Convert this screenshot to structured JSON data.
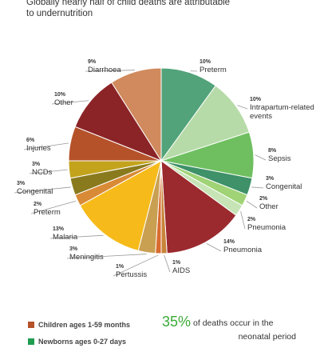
{
  "subtitle": "Globally nearly half of child deaths are attributable to undernutrition",
  "colors": {
    "children": "#b5522a",
    "newborns": "#1e9c4f"
  },
  "chart_data": {
    "type": "pie",
    "slices": [
      {
        "pct": "10%",
        "label": [
          "Preterm"
        ],
        "value": 10,
        "color": "#52a37a"
      },
      {
        "pct": "10%",
        "label": [
          "Intrapartum-related",
          "events"
        ],
        "value": 10,
        "color": "#b6dba8"
      },
      {
        "pct": "8%",
        "label": [
          "Sepsis"
        ],
        "value": 8,
        "color": "#6fbf60"
      },
      {
        "pct": "3%",
        "label": [
          "Congenital"
        ],
        "value": 3,
        "color": "#3e9168"
      },
      {
        "pct": "2%",
        "label": [
          "Other"
        ],
        "value": 2,
        "color": "#9fd375"
      },
      {
        "pct": "2%",
        "label": [
          "Pneumonia"
        ],
        "value": 2,
        "color": "#c6e4b5"
      },
      {
        "pct": "14%",
        "label": [
          "Pneumonia"
        ],
        "value": 14,
        "color": "#9b2a2f"
      },
      {
        "pct": "1%",
        "label": [
          "AIDS"
        ],
        "value": 1,
        "color": "#c8843a"
      },
      {
        "pct": "1%",
        "label": [
          "Pertussis"
        ],
        "value": 1,
        "color": "#d96b2f"
      },
      {
        "pct": "3%",
        "label": [
          "Meningitis"
        ],
        "value": 3,
        "color": "#c9a052"
      },
      {
        "pct": "13%",
        "label": [
          "Malaria"
        ],
        "value": 13,
        "color": "#f6bb1b"
      },
      {
        "pct": "2%",
        "label": [
          "Preterm"
        ],
        "value": 2,
        "color": "#d98a36"
      },
      {
        "pct": "3%",
        "label": [
          "Congenital"
        ],
        "value": 3,
        "color": "#8a7a1e"
      },
      {
        "pct": "3%",
        "label": [
          "NCDs"
        ],
        "value": 3,
        "color": "#c2a31b"
      },
      {
        "pct": "6%",
        "label": [
          "Injuries"
        ],
        "value": 6,
        "color": "#b5522a"
      },
      {
        "pct": "10%",
        "label": [
          "Other"
        ],
        "value": 10,
        "color": "#8b2427"
      },
      {
        "pct": "9%",
        "label": [
          "Diarrhoea"
        ],
        "value": 9,
        "color": "#d08a5d"
      }
    ]
  },
  "legend": [
    {
      "label": "Children ages 1-59 months",
      "color": "#b5522a"
    },
    {
      "label": "Newborns ages 0-27 days",
      "color": "#1e9c4f"
    }
  ],
  "stat": {
    "value": "35%",
    "line1": "of deaths occur in the",
    "line2": "neonatal period"
  }
}
